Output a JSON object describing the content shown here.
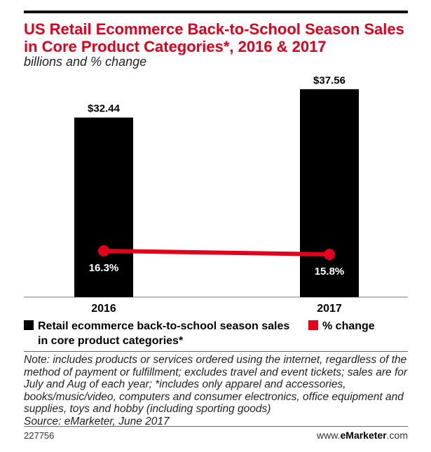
{
  "header": {
    "title": "US Retail Ecommerce Back-to-School Season Sales in Core Product Categories*, 2016 & 2017",
    "subtitle": "billions and % change"
  },
  "colors": {
    "bar": "#000000",
    "line": "#e4001b",
    "title": "#e0001b"
  },
  "chart_data": {
    "type": "bar",
    "categories": [
      "2016",
      "2017"
    ],
    "series": [
      {
        "name": "Retail ecommerce back-to-school season sales in core product categories*",
        "type": "bar",
        "values": [
          32.44,
          37.56
        ],
        "labels": [
          "$32.44",
          "$37.56"
        ],
        "color": "#000000"
      },
      {
        "name": "% change",
        "type": "line",
        "values": [
          16.3,
          15.8
        ],
        "labels": [
          "16.3%",
          "15.8%"
        ],
        "color": "#e4001b"
      }
    ],
    "ylim": [
      0,
      40
    ],
    "legend_position": "bottom",
    "grid": false
  },
  "footer": {
    "note": "Note: includes products or services ordered using the internet, regardless of the method of payment or fulfillment; excludes travel and event tickets; sales are for July and Aug of each year; *includes only apparel and accessories, books/music/video, computers and consumer electronics, office equipment and supplies, toys and hobby (including sporting goods)",
    "source": "Source: eMarketer, June 2017",
    "chart_id": "227756",
    "brand_prefix": "www.",
    "brand_bold": "eMarketer",
    "brand_suffix": ".com"
  }
}
